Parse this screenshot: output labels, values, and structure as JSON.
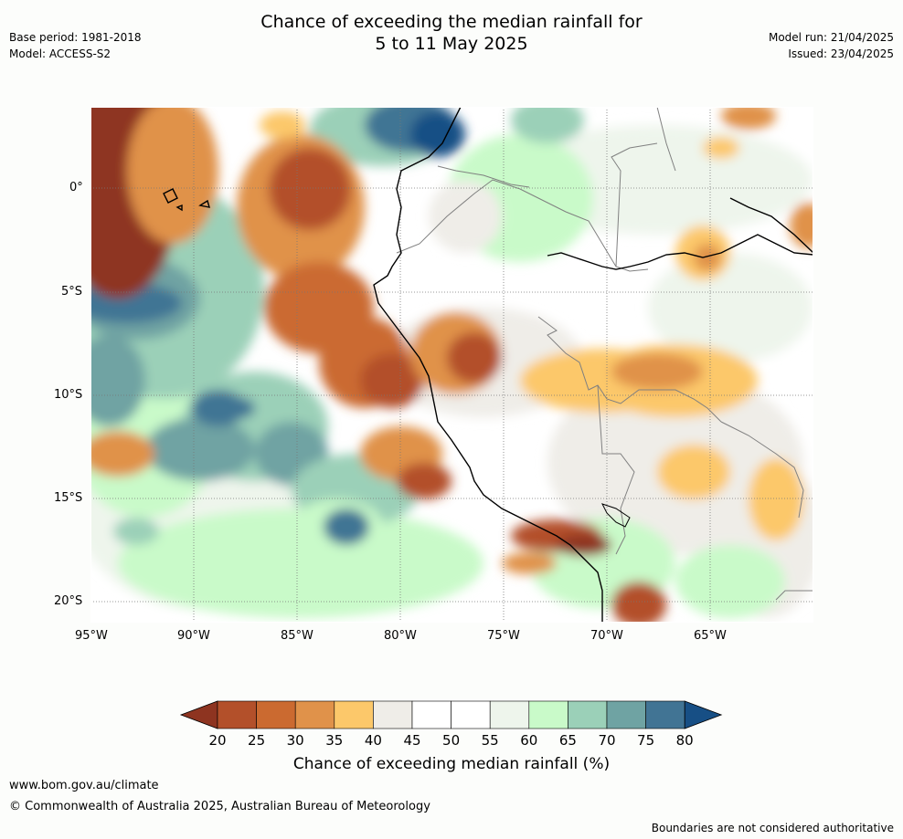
{
  "title": {
    "line1": "Chance of exceeding the median rainfall for",
    "line2": "5 to 11 May 2025"
  },
  "meta": {
    "base_period": "Base period: 1981-2018",
    "model": "Model: ACCESS-S2",
    "model_run": "Model run: 21/04/2025",
    "issued": "Issued: 23/04/2025"
  },
  "map": {
    "region": "Western South America (Peru / Ecuador coast)",
    "lon_range": [
      -95,
      -60
    ],
    "lat_range": [
      -21,
      4
    ],
    "lat_ticks": [
      "0°",
      "5°S",
      "10°S",
      "15°S",
      "20°S"
    ],
    "lon_ticks": [
      "95°W",
      "90°W",
      "85°W",
      "80°W",
      "75°W",
      "70°W",
      "65°W"
    ],
    "gridlines": true,
    "coastline_color": "#000000",
    "border_color": "#808080"
  },
  "colorbar": {
    "labels": [
      "20",
      "25",
      "30",
      "35",
      "40",
      "45",
      "50",
      "55",
      "60",
      "65",
      "70",
      "75",
      "80"
    ],
    "colors": [
      "#8e3420",
      "#b3502a",
      "#cb6a30",
      "#e0924a",
      "#fcc86a",
      "#efede8",
      "#ffffff",
      "#ffffff",
      "#eef5ec",
      "#c9fac9",
      "#9bd0b8",
      "#6fa3a3",
      "#417494",
      "#174f85"
    ],
    "extend_low_color": "#8e3420",
    "extend_high_color": "#174f85",
    "label": "Chance of exceeding median rainfall (%)"
  },
  "footer": {
    "url": "www.bom.gov.au/climate",
    "copyright": "© Commonwealth of Australia 2025, Australian Bureau of Meteorology",
    "disclaimer": "Boundaries are not considered authoritative"
  }
}
